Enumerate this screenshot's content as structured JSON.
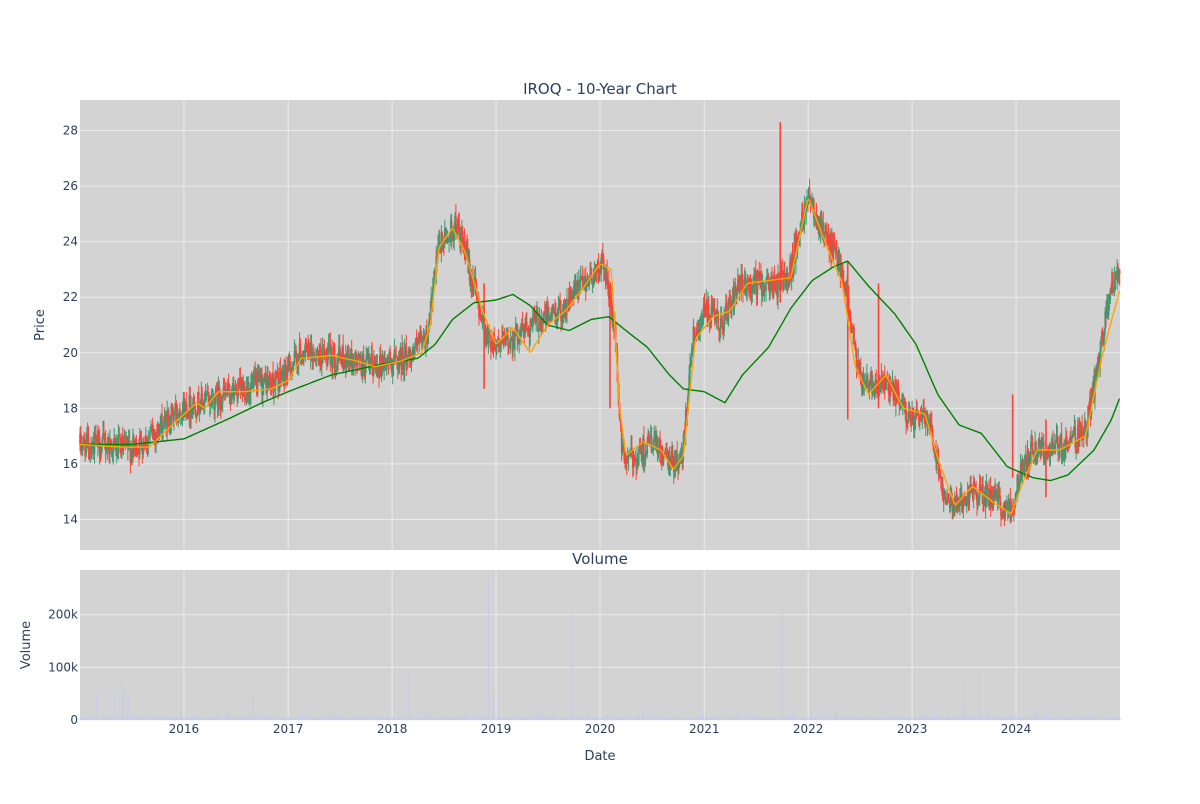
{
  "chart_data": {
    "type": "candlestick",
    "title": "IROQ - 10-Year Chart",
    "colors": {
      "plot_background": "#d3d3d3",
      "gridline": "#ebebeb",
      "text": "#2a3f5f",
      "increasing": "#3d9970",
      "decreasing": "#ff4136",
      "ma_short": "#ffa500",
      "ma_long": "#008000",
      "volume_bar": "#c8cce8"
    },
    "price_panel": {
      "ylabel": "Price",
      "ylim": [
        12.9,
        29.1
      ],
      "yticks": [
        14,
        16,
        18,
        20,
        22,
        24,
        26,
        28
      ],
      "grid": true
    },
    "volume_panel": {
      "title": "Volume",
      "ylabel": "Volume",
      "ylim": [
        0,
        285000
      ],
      "yticks": [
        0,
        100000,
        200000
      ],
      "ytick_labels": [
        "0",
        "100k",
        "200k"
      ],
      "grid": true
    },
    "xaxis": {
      "label": "Date",
      "range": [
        "2015-01-01",
        "2024-12-31"
      ],
      "ticks": [
        "2016",
        "2017",
        "2018",
        "2019",
        "2020",
        "2021",
        "2022",
        "2023",
        "2024"
      ]
    },
    "price_points": [
      [
        "2015-01-01",
        16.7
      ],
      [
        "2015-04-01",
        16.7
      ],
      [
        "2015-07-01",
        16.5
      ],
      [
        "2015-10-01",
        17.2
      ],
      [
        "2015-12-15",
        18.0
      ],
      [
        "2016-03-01",
        18.2
      ],
      [
        "2016-06-01",
        18.5
      ],
      [
        "2016-09-01",
        18.8
      ],
      [
        "2016-12-01",
        19.0
      ],
      [
        "2017-02-15",
        20.0
      ],
      [
        "2017-05-01",
        19.9
      ],
      [
        "2017-08-01",
        19.8
      ],
      [
        "2017-10-01",
        19.5
      ],
      [
        "2018-01-01",
        19.7
      ],
      [
        "2018-03-01",
        19.9
      ],
      [
        "2018-05-01",
        20.5
      ],
      [
        "2018-06-15",
        23.8
      ],
      [
        "2018-08-15",
        24.6
      ],
      [
        "2018-10-01",
        23.0
      ],
      [
        "2018-12-01",
        20.5
      ],
      [
        "2019-02-01",
        20.3
      ],
      [
        "2019-04-01",
        20.8
      ],
      [
        "2019-06-01",
        21.2
      ],
      [
        "2019-08-15",
        21.5
      ],
      [
        "2019-11-01",
        22.5
      ],
      [
        "2020-01-15",
        23.2
      ],
      [
        "2020-02-20",
        21.0
      ],
      [
        "2020-03-20",
        16.2
      ],
      [
        "2020-05-01",
        16.2
      ],
      [
        "2020-07-01",
        16.8
      ],
      [
        "2020-09-01",
        16.0
      ],
      [
        "2020-10-15",
        16.2
      ],
      [
        "2020-11-20",
        20.5
      ],
      [
        "2021-01-01",
        21.5
      ],
      [
        "2021-03-01",
        21.0
      ],
      [
        "2021-05-01",
        22.3
      ],
      [
        "2021-07-01",
        22.5
      ],
      [
        "2021-09-15",
        22.4
      ],
      [
        "2021-11-01",
        23.0
      ],
      [
        "2022-01-01",
        25.8
      ],
      [
        "2022-03-01",
        24.2
      ],
      [
        "2022-05-01",
        23.0
      ],
      [
        "2022-07-01",
        19.0
      ],
      [
        "2022-09-01",
        19.0
      ],
      [
        "2022-11-01",
        18.5
      ],
      [
        "2023-01-01",
        17.5
      ],
      [
        "2023-03-01",
        17.8
      ],
      [
        "2023-04-15",
        15.2
      ],
      [
        "2023-06-01",
        14.5
      ],
      [
        "2023-08-01",
        15.0
      ],
      [
        "2023-10-01",
        14.8
      ],
      [
        "2023-12-15",
        14.3
      ],
      [
        "2024-01-20",
        15.8
      ],
      [
        "2024-03-01",
        16.6
      ],
      [
        "2024-05-01",
        16.5
      ],
      [
        "2024-07-01",
        16.8
      ],
      [
        "2024-09-01",
        17.2
      ],
      [
        "2024-10-15",
        19.5
      ],
      [
        "2024-12-01",
        22.5
      ],
      [
        "2024-12-31",
        23.0
      ]
    ],
    "ma_short_points": [
      [
        "2015-01-01",
        16.7
      ],
      [
        "2015-06-01",
        16.6
      ],
      [
        "2015-09-01",
        16.6
      ],
      [
        "2015-12-01",
        17.5
      ],
      [
        "2016-02-15",
        18.2
      ],
      [
        "2016-03-15",
        18.0
      ],
      [
        "2016-05-01",
        18.6
      ],
      [
        "2016-08-01",
        18.6
      ],
      [
        "2016-11-01",
        18.7
      ],
      [
        "2017-01-01",
        19.0
      ],
      [
        "2017-02-15",
        19.8
      ],
      [
        "2017-06-01",
        19.9
      ],
      [
        "2017-09-01",
        19.7
      ],
      [
        "2017-11-01",
        19.5
      ],
      [
        "2018-02-01",
        19.7
      ],
      [
        "2018-04-15",
        20.0
      ],
      [
        "2018-05-15",
        21.0
      ],
      [
        "2018-06-15",
        23.8
      ],
      [
        "2018-08-01",
        24.5
      ],
      [
        "2018-09-15",
        23.6
      ],
      [
        "2018-11-15",
        21.5
      ],
      [
        "2019-01-01",
        20.3
      ],
      [
        "2019-03-01",
        20.9
      ],
      [
        "2019-05-01",
        20.0
      ],
      [
        "2019-07-01",
        21.0
      ],
      [
        "2019-09-01",
        21.5
      ],
      [
        "2019-11-01",
        22.3
      ],
      [
        "2020-01-01",
        23.2
      ],
      [
        "2020-02-10",
        23.0
      ],
      [
        "2020-03-10",
        18.0
      ],
      [
        "2020-04-01",
        16.3
      ],
      [
        "2020-06-01",
        16.8
      ],
      [
        "2020-08-01",
        16.5
      ],
      [
        "2020-09-15",
        15.8
      ],
      [
        "2020-10-20",
        16.3
      ],
      [
        "2020-12-01",
        20.5
      ],
      [
        "2021-02-01",
        21.3
      ],
      [
        "2021-04-01",
        21.5
      ],
      [
        "2021-06-01",
        22.5
      ],
      [
        "2021-08-15",
        22.6
      ],
      [
        "2021-11-01",
        22.7
      ],
      [
        "2022-01-01",
        25.6
      ],
      [
        "2022-03-01",
        24.0
      ],
      [
        "2022-05-01",
        22.5
      ],
      [
        "2022-06-15",
        19.5
      ],
      [
        "2022-08-01",
        18.5
      ],
      [
        "2022-10-01",
        19.2
      ],
      [
        "2022-12-01",
        18.0
      ],
      [
        "2023-02-15",
        17.8
      ],
      [
        "2023-04-01",
        16.2
      ],
      [
        "2023-06-01",
        14.5
      ],
      [
        "2023-08-01",
        15.2
      ],
      [
        "2023-10-15",
        14.6
      ],
      [
        "2023-12-15",
        14.2
      ],
      [
        "2024-01-20",
        15.2
      ],
      [
        "2024-03-15",
        16.5
      ],
      [
        "2024-06-01",
        16.5
      ],
      [
        "2024-09-01",
        17.0
      ],
      [
        "2024-11-01",
        20.0
      ],
      [
        "2024-12-31",
        22.3
      ]
    ],
    "ma_long_points": [
      [
        "2015-01-01",
        16.7
      ],
      [
        "2015-07-01",
        16.7
      ],
      [
        "2016-01-01",
        16.9
      ],
      [
        "2016-06-01",
        17.6
      ],
      [
        "2016-10-01",
        18.2
      ],
      [
        "2017-01-01",
        18.6
      ],
      [
        "2017-06-01",
        19.2
      ],
      [
        "2017-12-01",
        19.6
      ],
      [
        "2018-04-01",
        19.8
      ],
      [
        "2018-06-01",
        20.3
      ],
      [
        "2018-08-01",
        21.2
      ],
      [
        "2018-10-15",
        21.8
      ],
      [
        "2019-01-01",
        21.9
      ],
      [
        "2019-03-01",
        22.1
      ],
      [
        "2019-05-01",
        21.7
      ],
      [
        "2019-07-01",
        21.0
      ],
      [
        "2019-09-15",
        20.8
      ],
      [
        "2019-12-01",
        21.2
      ],
      [
        "2020-02-01",
        21.3
      ],
      [
        "2020-04-01",
        20.8
      ],
      [
        "2020-06-15",
        20.2
      ],
      [
        "2020-09-01",
        19.2
      ],
      [
        "2020-10-20",
        18.7
      ],
      [
        "2021-01-01",
        18.6
      ],
      [
        "2021-03-15",
        18.2
      ],
      [
        "2021-05-15",
        19.2
      ],
      [
        "2021-08-15",
        20.2
      ],
      [
        "2021-11-01",
        21.6
      ],
      [
        "2022-01-15",
        22.6
      ],
      [
        "2022-04-01",
        23.1
      ],
      [
        "2022-05-20",
        23.3
      ],
      [
        "2022-08-01",
        22.4
      ],
      [
        "2022-11-01",
        21.4
      ],
      [
        "2023-01-15",
        20.3
      ],
      [
        "2023-04-01",
        18.5
      ],
      [
        "2023-06-15",
        17.4
      ],
      [
        "2023-09-01",
        17.1
      ],
      [
        "2023-12-01",
        15.9
      ],
      [
        "2024-03-01",
        15.5
      ],
      [
        "2024-05-01",
        15.4
      ],
      [
        "2024-07-01",
        15.6
      ],
      [
        "2024-10-01",
        16.5
      ],
      [
        "2024-12-01",
        17.6
      ],
      [
        "2024-12-31",
        18.4
      ]
    ],
    "price_spikes": [
      [
        "2021-09-25",
        28.3,
        21.8
      ],
      [
        "2020-02-05",
        22.0,
        18.0
      ],
      [
        "2022-05-20",
        23.3,
        17.6
      ],
      [
        "2022-09-05",
        22.5,
        18.0
      ],
      [
        "2018-11-20",
        22.5,
        18.7
      ],
      [
        "2024-04-15",
        17.6,
        14.8
      ],
      [
        "2023-12-20",
        18.5,
        15.5
      ]
    ],
    "volume_spikes": [
      [
        "2015-03-01",
        55000
      ],
      [
        "2015-05-01",
        50000
      ],
      [
        "2015-06-01",
        70000
      ],
      [
        "2015-06-20",
        45000
      ],
      [
        "2016-09-01",
        55000
      ],
      [
        "2018-03-01",
        90000
      ],
      [
        "2018-12-05",
        270000
      ],
      [
        "2018-12-25",
        55000
      ],
      [
        "2019-09-25",
        200000
      ],
      [
        "2021-10-01",
        210000
      ],
      [
        "2023-07-01",
        75000
      ],
      [
        "2023-08-25",
        90000
      ]
    ]
  }
}
